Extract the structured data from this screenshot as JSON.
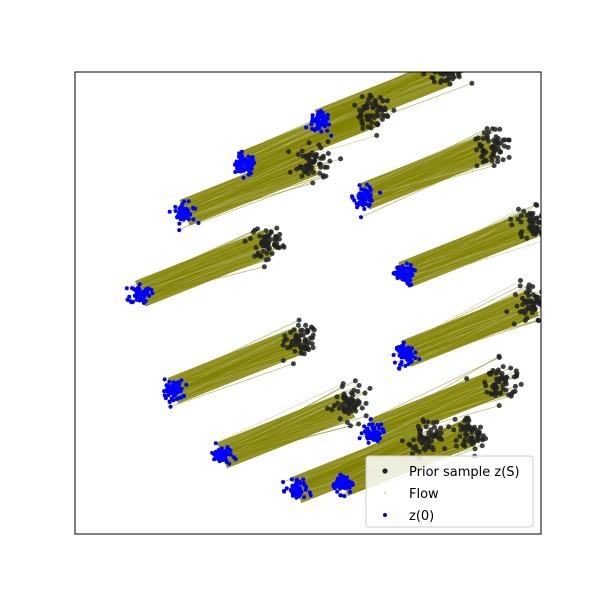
{
  "chart_data": {
    "type": "scatter",
    "title": "",
    "xlabel": "",
    "ylabel": "",
    "xlim": [
      -1.0,
      1.0
    ],
    "ylim": [
      -1.0,
      1.0
    ],
    "axis_ticks": false,
    "grid": false,
    "legend": {
      "placement": "lower-right",
      "entries": [
        {
          "label": "Prior sample z(S)",
          "color": "#222222",
          "marker": "point"
        },
        {
          "label": "Flow",
          "color": "#c8c8a0",
          "marker": "point"
        },
        {
          "label": "z(0)",
          "color": "#0000ff",
          "marker": "point"
        }
      ]
    },
    "colors": {
      "prior": "#222222",
      "flow": "#808000",
      "z0": "#0000ff"
    },
    "flow_offset": [
      0.55,
      0.22
    ],
    "clusters": [
      {
        "name": "",
        "z0_center": [
          -0.27,
          0.6
        ]
      },
      {
        "name": "",
        "z0_center": [
          -0.53,
          0.39
        ]
      },
      {
        "name": "",
        "z0_center": [
          0.05,
          0.78
        ]
      },
      {
        "name": "",
        "z0_center": [
          0.24,
          0.46
        ]
      },
      {
        "name": "",
        "z0_center": [
          -0.72,
          0.04
        ]
      },
      {
        "name": "",
        "z0_center": [
          0.41,
          0.12
        ]
      },
      {
        "name": "",
        "z0_center": [
          -0.58,
          -0.38
        ]
      },
      {
        "name": "",
        "z0_center": [
          0.42,
          -0.22
        ]
      },
      {
        "name": "",
        "z0_center": [
          -0.37,
          -0.66
        ]
      },
      {
        "name": "",
        "z0_center": [
          0.28,
          -0.56
        ]
      },
      {
        "name": "",
        "z0_center": [
          -0.05,
          -0.81
        ]
      },
      {
        "name": "",
        "z0_center": [
          0.15,
          -0.78
        ]
      }
    ]
  }
}
